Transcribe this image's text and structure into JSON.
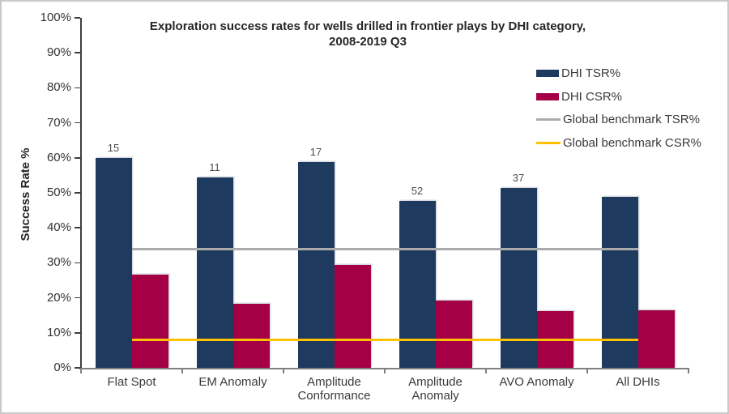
{
  "chart": {
    "title_line1": "Exploration success rates for wells drilled in frontier plays by DHI category,",
    "title_line2": "2008-2019 Q3",
    "y_axis_title": "Success Rate %"
  },
  "chart_data": {
    "type": "bar",
    "title": "Exploration success rates for wells drilled in frontier plays by DHI category, 2008-2019 Q3",
    "ylabel": "Success Rate %",
    "ylim": [
      0,
      100
    ],
    "ytick_labels": [
      "0%",
      "10%",
      "20%",
      "30%",
      "40%",
      "50%",
      "60%",
      "70%",
      "80%",
      "90%",
      "100%"
    ],
    "grid": false,
    "legend_position": "upper right",
    "categories": [
      "Flat Spot",
      "EM Anomaly",
      "Amplitude Conformance",
      "Amplitude Anomaly",
      "AVO Anomaly",
      "All DHIs"
    ],
    "series": [
      {
        "name": "DHI TSR%",
        "kind": "bar",
        "color": "#1F3A5F",
        "values": [
          60,
          54.4,
          58.8,
          47.8,
          51.3,
          48.8
        ]
      },
      {
        "name": "DHI CSR%",
        "kind": "bar",
        "color": "#A50045",
        "values": [
          26.6,
          18.2,
          29.4,
          19.2,
          16.2,
          16.5
        ]
      },
      {
        "name": "Global benchmark TSR%",
        "kind": "line",
        "color": "#ABABAB",
        "values": [
          34,
          34,
          34,
          34,
          34,
          34
        ]
      },
      {
        "name": "Global benchmark CSR%",
        "kind": "line",
        "color": "#FFC000",
        "values": [
          8,
          8,
          8,
          8,
          8,
          8
        ]
      }
    ],
    "bar_count_labels": [
      "15",
      "11",
      "17",
      "52",
      "37",
      ""
    ],
    "axis_colors": {
      "y_axis": "#3f3f3f",
      "x_axis": "#808080"
    }
  }
}
